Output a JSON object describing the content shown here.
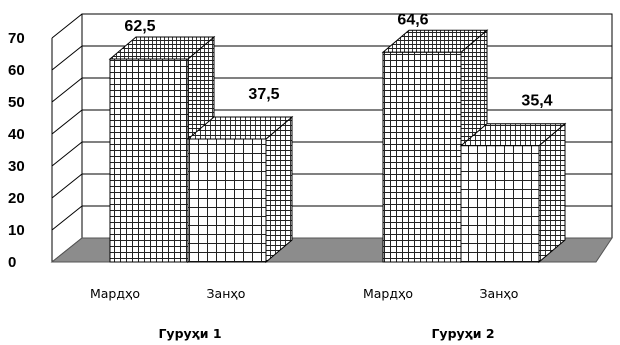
{
  "chart_data": {
    "type": "bar",
    "style": "3d",
    "groups": [
      "Гуруҳи 1",
      "Гуруҳи 2"
    ],
    "categories": [
      "Мардҳо",
      "Занҳо"
    ],
    "series": [
      {
        "values": [
          62.5,
          64.6
        ],
        "pattern": "dense-grid"
      },
      {
        "values": [
          37.5,
          35.4
        ],
        "pattern": "sparse-grid"
      }
    ],
    "data_labels": [
      [
        "62,5",
        "37,5"
      ],
      [
        "64,6",
        "35,4"
      ]
    ],
    "y_ticks": [
      0,
      10,
      20,
      30,
      40,
      50,
      60,
      70
    ],
    "ylim": [
      0,
      70
    ],
    "grid": true,
    "legend": "none",
    "colors": {
      "bar_face": "#ffffff",
      "bar_lines": "#222222",
      "floor": "#8c8c8c",
      "grid": "#000000"
    }
  }
}
